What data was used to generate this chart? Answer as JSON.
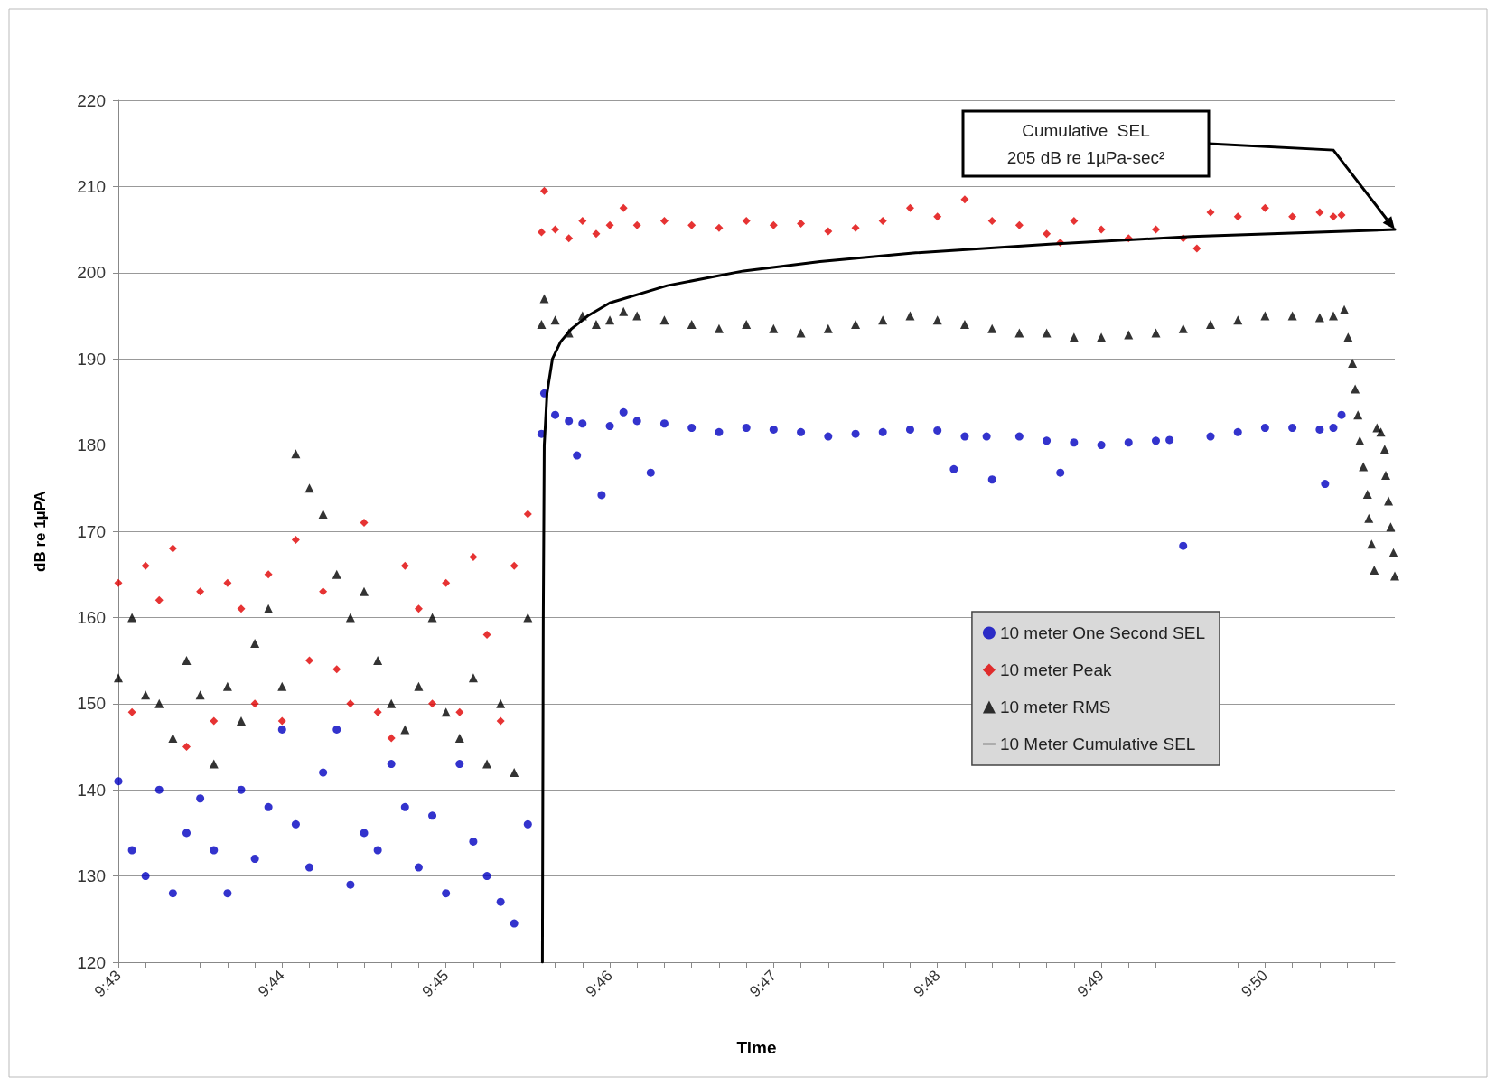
{
  "chart_data": {
    "type": "scatter",
    "xlabel": "Time",
    "ylabel": "dB re 1µPA",
    "xlim": [
      9.71667,
      9.84653
    ],
    "ylim": [
      120,
      220
    ],
    "yticks": [
      120,
      130,
      140,
      150,
      160,
      170,
      180,
      190,
      200,
      210,
      220
    ],
    "xticks": [
      {
        "value": 9.71667,
        "label": "9:43"
      },
      {
        "value": 9.71944,
        "label": null
      },
      {
        "value": 9.72222,
        "label": null
      },
      {
        "value": 9.725,
        "label": null
      },
      {
        "value": 9.72778,
        "label": null
      },
      {
        "value": 9.73056,
        "label": null
      },
      {
        "value": 9.73333,
        "label": "9:44"
      },
      {
        "value": 9.73611,
        "label": null
      },
      {
        "value": 9.73889,
        "label": null
      },
      {
        "value": 9.74167,
        "label": null
      },
      {
        "value": 9.74444,
        "label": null
      },
      {
        "value": 9.74722,
        "label": null
      },
      {
        "value": 9.75,
        "label": "9:45"
      },
      {
        "value": 9.75278,
        "label": null
      },
      {
        "value": 9.75556,
        "label": null
      },
      {
        "value": 9.75833,
        "label": null
      },
      {
        "value": 9.76111,
        "label": null
      },
      {
        "value": 9.76389,
        "label": null
      },
      {
        "value": 9.76667,
        "label": "9:46"
      },
      {
        "value": 9.76944,
        "label": null
      },
      {
        "value": 9.77222,
        "label": null
      },
      {
        "value": 9.775,
        "label": null
      },
      {
        "value": 9.77778,
        "label": null
      },
      {
        "value": 9.78056,
        "label": null
      },
      {
        "value": 9.78333,
        "label": "9:47"
      },
      {
        "value": 9.78611,
        "label": null
      },
      {
        "value": 9.78889,
        "label": null
      },
      {
        "value": 9.79167,
        "label": null
      },
      {
        "value": 9.79444,
        "label": null
      },
      {
        "value": 9.79722,
        "label": null
      },
      {
        "value": 9.8,
        "label": "9:48"
      },
      {
        "value": 9.80278,
        "label": null
      },
      {
        "value": 9.80556,
        "label": null
      },
      {
        "value": 9.80833,
        "label": null
      },
      {
        "value": 9.81111,
        "label": null
      },
      {
        "value": 9.81389,
        "label": null
      },
      {
        "value": 9.81667,
        "label": "9:49"
      },
      {
        "value": 9.81944,
        "label": null
      },
      {
        "value": 9.82222,
        "label": null
      },
      {
        "value": 9.825,
        "label": null
      },
      {
        "value": 9.82778,
        "label": null
      },
      {
        "value": 9.83056,
        "label": null
      },
      {
        "value": 9.83333,
        "label": "9:50"
      },
      {
        "value": 9.83611,
        "label": null
      },
      {
        "value": 9.83889,
        "label": null
      },
      {
        "value": 9.84167,
        "label": null
      },
      {
        "value": 9.84444,
        "label": null
      }
    ],
    "grid": "y",
    "legend": "bottom right",
    "annotations": [
      "Cumulative  SEL\n205 dB re 1µPa-sec²"
    ],
    "series": [
      {
        "name": "10 meter One Second SEL",
        "type": "scatter",
        "marker": "circle",
        "color": "#0000c0",
        "x": [
          9.71667,
          9.71806,
          9.71944,
          9.72083,
          9.72222,
          9.72361,
          9.725,
          9.72639,
          9.72778,
          9.72917,
          9.73056,
          9.73194,
          9.73333,
          9.73472,
          9.73611,
          9.7375,
          9.73889,
          9.74028,
          9.74167,
          9.74306,
          9.74444,
          9.74583,
          9.74722,
          9.74861,
          9.75,
          9.75139,
          9.75278,
          9.75417,
          9.75556,
          9.75694,
          9.75833,
          9.75972,
          9.76,
          9.76111,
          9.7625,
          9.76333,
          9.76389,
          9.76583,
          9.76667,
          9.76806,
          9.76944,
          9.77083,
          9.77222,
          9.775,
          9.77778,
          9.78056,
          9.78333,
          9.78611,
          9.78889,
          9.79167,
          9.79444,
          9.79722,
          9.8,
          9.80167,
          9.80278,
          9.805,
          9.80556,
          9.80833,
          9.81111,
          9.8125,
          9.81389,
          9.81667,
          9.81944,
          9.82222,
          9.82361,
          9.825,
          9.82778,
          9.83056,
          9.83333,
          9.83611,
          9.83889,
          9.83944,
          9.84028,
          9.84111
        ],
        "values": [
          141,
          133,
          130,
          140,
          128,
          135,
          139,
          133,
          128,
          140,
          132,
          138,
          147,
          136,
          131,
          142,
          147,
          129,
          135,
          133,
          143,
          138,
          131,
          137,
          128,
          143,
          134,
          130,
          127,
          124.5,
          136,
          181.3,
          186,
          183.5,
          182.8,
          178.8,
          182.5,
          174.2,
          182.2,
          183.8,
          182.8,
          176.8,
          182.5,
          182,
          181.5,
          182,
          181.8,
          181.5,
          181,
          181.3,
          181.5,
          181.8,
          181.7,
          177.2,
          181,
          181,
          176,
          181,
          180.5,
          176.8,
          180.3,
          180,
          180.3,
          180.5,
          180.6,
          168.3,
          181,
          181.5,
          182,
          182,
          181.8,
          175.5,
          182,
          183.5
        ]
      },
      {
        "name": "10 meter Peak",
        "type": "scatter",
        "marker": "diamond",
        "color": "#e00000",
        "x": [
          9.71667,
          9.71806,
          9.71944,
          9.72083,
          9.72222,
          9.72361,
          9.725,
          9.72639,
          9.72778,
          9.72917,
          9.73056,
          9.73194,
          9.73333,
          9.73472,
          9.73611,
          9.7375,
          9.73889,
          9.74028,
          9.74167,
          9.74306,
          9.74444,
          9.74583,
          9.74722,
          9.74861,
          9.75,
          9.75139,
          9.75278,
          9.75417,
          9.75556,
          9.75694,
          9.75833,
          9.75972,
          9.76,
          9.76111,
          9.7625,
          9.76389,
          9.76528,
          9.76667,
          9.76806,
          9.76944,
          9.77222,
          9.775,
          9.77778,
          9.78056,
          9.78333,
          9.78611,
          9.78889,
          9.79167,
          9.79444,
          9.79722,
          9.8,
          9.80278,
          9.80556,
          9.80833,
          9.81111,
          9.8125,
          9.81389,
          9.81667,
          9.81944,
          9.82222,
          9.825,
          9.82639,
          9.82778,
          9.83056,
          9.83333,
          9.83611,
          9.83889,
          9.84028,
          9.84111
        ],
        "values": [
          164,
          149,
          166,
          162,
          168,
          145,
          163,
          148,
          164,
          161,
          150,
          165,
          148,
          169,
          155,
          163,
          154,
          150,
          171,
          149,
          146,
          166,
          161,
          150,
          164,
          149,
          167,
          158,
          148,
          166,
          172,
          204.7,
          209.5,
          205,
          204,
          206,
          204.5,
          205.5,
          207.5,
          205.5,
          206,
          205.5,
          205.2,
          206,
          205.5,
          205.7,
          204.8,
          205.2,
          206,
          207.5,
          206.5,
          208.5,
          206,
          205.5,
          204.5,
          203.5,
          206,
          205,
          204,
          205,
          204,
          202.8,
          207,
          206.5,
          207.5,
          206.5,
          207,
          206.5,
          206.7
        ]
      },
      {
        "name": "10 meter RMS",
        "type": "scatter",
        "marker": "triangle",
        "color": "#000000",
        "x": [
          9.71667,
          9.71806,
          9.71944,
          9.72083,
          9.72222,
          9.72361,
          9.725,
          9.72639,
          9.72778,
          9.72917,
          9.73056,
          9.73194,
          9.73333,
          9.73472,
          9.73611,
          9.7375,
          9.73889,
          9.74028,
          9.74167,
          9.74306,
          9.74444,
          9.74583,
          9.74722,
          9.74861,
          9.75,
          9.75139,
          9.75278,
          9.75417,
          9.75556,
          9.75694,
          9.75833,
          9.75972,
          9.76,
          9.76111,
          9.7625,
          9.76389,
          9.76528,
          9.76667,
          9.76806,
          9.76944,
          9.77222,
          9.775,
          9.77778,
          9.78056,
          9.78333,
          9.78611,
          9.78889,
          9.79167,
          9.79444,
          9.79722,
          9.8,
          9.80278,
          9.80556,
          9.80833,
          9.81111,
          9.81389,
          9.81667,
          9.81944,
          9.82222,
          9.825,
          9.82778,
          9.83056,
          9.83333,
          9.83611,
          9.83889,
          9.84028,
          9.84139,
          9.84178,
          9.84222,
          9.8425,
          9.84278,
          9.84297,
          9.84333,
          9.84375,
          9.84389,
          9.84417,
          9.84444,
          9.84472,
          9.84511,
          9.8455,
          9.84561,
          9.84589,
          9.84611,
          9.84639,
          9.84653
        ],
        "values": [
          153,
          160,
          151,
          150,
          146,
          155,
          151,
          143,
          152,
          148,
          157,
          161,
          152,
          179,
          175,
          172,
          165,
          160,
          163,
          155,
          150,
          147,
          152,
          160,
          149,
          146,
          153,
          143,
          150,
          142,
          160,
          194,
          197,
          194.5,
          193,
          195,
          194,
          194.5,
          195.5,
          195,
          194.5,
          194,
          193.5,
          194,
          193.5,
          193,
          193.5,
          194,
          194.5,
          195,
          194.5,
          194,
          193.5,
          193,
          193,
          192.5,
          192.5,
          192.8,
          193,
          193.5,
          194,
          194.5,
          195,
          195,
          194.8,
          195,
          195.7,
          192.5,
          189.5,
          186.5,
          183.5,
          180.5,
          177.5,
          174.3,
          171.5,
          168.5,
          165.5,
          182,
          181.5,
          179.5,
          176.5,
          173.5,
          170.5,
          167.5,
          164.8
        ]
      },
      {
        "name": "10 Meter Cumulative SEL",
        "type": "line",
        "marker": "none",
        "line_style": "solid",
        "color": "#000000",
        "x": [
          9.75981,
          9.7599,
          9.76,
          9.76028,
          9.76083,
          9.76167,
          9.76278,
          9.76444,
          9.76667,
          9.7725,
          9.78028,
          9.78806,
          9.79778,
          9.81139,
          9.82583,
          9.84653
        ],
        "values": [
          120,
          160,
          180,
          186,
          190,
          192,
          193.5,
          195,
          196.5,
          198.5,
          200.2,
          201.3,
          202.3,
          203.3,
          204.2,
          205
        ]
      }
    ]
  }
}
